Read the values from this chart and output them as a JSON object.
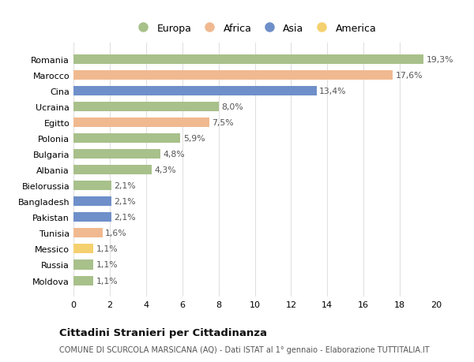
{
  "countries": [
    "Romania",
    "Marocco",
    "Cina",
    "Ucraina",
    "Egitto",
    "Polonia",
    "Bulgaria",
    "Albania",
    "Bielorussia",
    "Bangladesh",
    "Pakistan",
    "Tunisia",
    "Messico",
    "Russia",
    "Moldova"
  ],
  "values": [
    19.3,
    17.6,
    13.4,
    8.0,
    7.5,
    5.9,
    4.8,
    4.3,
    2.1,
    2.1,
    2.1,
    1.6,
    1.1,
    1.1,
    1.1
  ],
  "labels": [
    "19,3%",
    "17,6%",
    "13,4%",
    "8,0%",
    "7,5%",
    "5,9%",
    "4,8%",
    "4,3%",
    "2,1%",
    "2,1%",
    "2,1%",
    "1,6%",
    "1,1%",
    "1,1%",
    "1,1%"
  ],
  "continents": [
    "Europa",
    "Africa",
    "Asia",
    "Europa",
    "Africa",
    "Europa",
    "Europa",
    "Europa",
    "Europa",
    "Asia",
    "Asia",
    "Africa",
    "America",
    "Europa",
    "Europa"
  ],
  "colors": {
    "Europa": "#a8c08a",
    "Africa": "#f0b990",
    "Asia": "#6e8fc9",
    "America": "#f5d06e"
  },
  "legend_order": [
    "Europa",
    "Africa",
    "Asia",
    "America"
  ],
  "title": "Cittadini Stranieri per Cittadinanza",
  "subtitle": "COMUNE DI SCURCOLA MARSICANA (AQ) - Dati ISTAT al 1° gennaio - Elaborazione TUTTITALIA.IT",
  "xlim": [
    0,
    20
  ],
  "xticks": [
    0,
    2,
    4,
    6,
    8,
    10,
    12,
    14,
    16,
    18,
    20
  ],
  "background_color": "#ffffff",
  "grid_color": "#e0e0e0"
}
